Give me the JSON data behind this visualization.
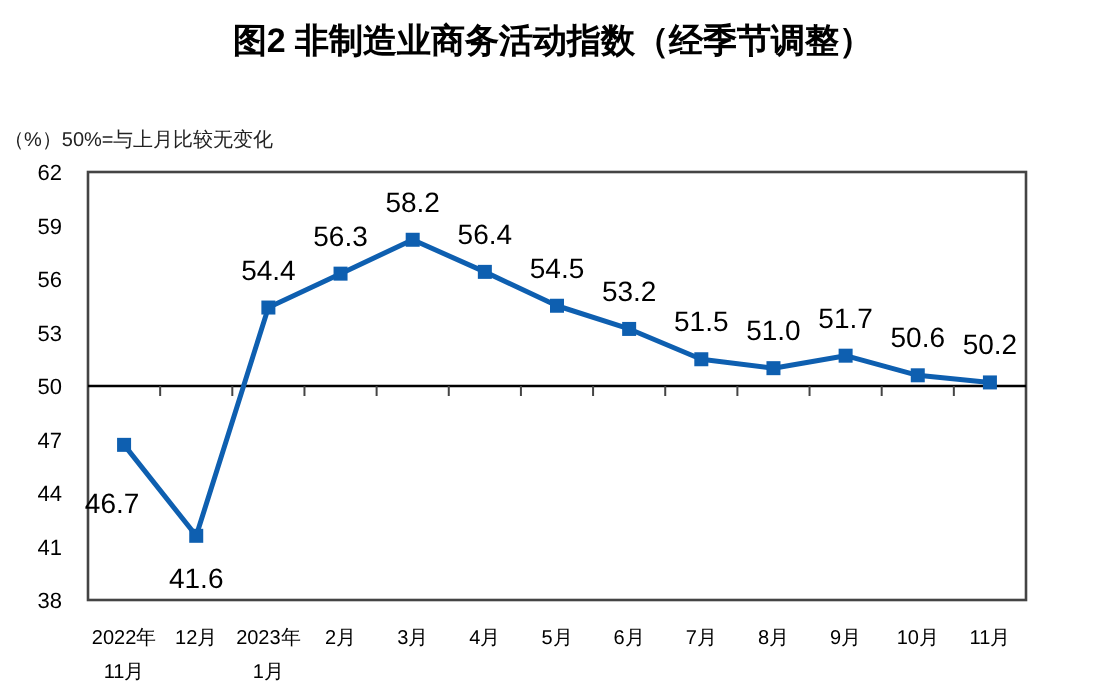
{
  "chart_data": {
    "type": "line",
    "title": "图2  非制造业商务活动指数（经季节调整）",
    "subtitle": "（%）50%=与上月比较无变化",
    "categories": [
      "2022年\n11月",
      "12月",
      "2023年\n1月",
      "2月",
      "3月",
      "4月",
      "5月",
      "6月",
      "7月",
      "8月",
      "9月",
      "10月",
      "11月"
    ],
    "series": [
      {
        "color": "#0e5fb0",
        "values": [
          46.7,
          41.6,
          54.4,
          56.3,
          58.2,
          56.4,
          54.5,
          53.2,
          51.5,
          51.0,
          51.7,
          50.6,
          50.2
        ]
      }
    ],
    "ylim": [
      38,
      62
    ],
    "yticks": [
      38,
      41,
      44,
      47,
      50,
      53,
      56,
      59,
      62
    ],
    "ref_lines": [
      {
        "axis": "y",
        "value": 50,
        "color": "#000000"
      }
    ],
    "value_labels": [
      "46.7",
      "41.6",
      "54.4",
      "56.3",
      "58.2",
      "56.4",
      "54.5",
      "53.2",
      "51.5",
      "51.0",
      "51.7",
      "50.6",
      "50.2"
    ],
    "marker": "square",
    "line_style": "solid",
    "grid": false
  }
}
